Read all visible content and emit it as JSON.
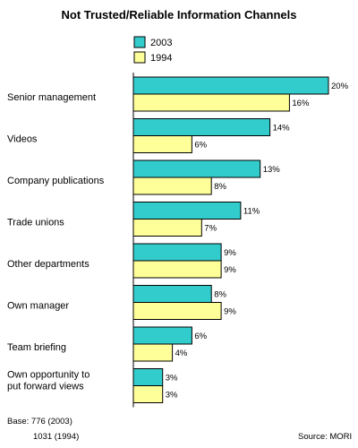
{
  "chart_data": {
    "type": "bar",
    "orientation": "horizontal",
    "title": "Not Trusted/Reliable Information Channels",
    "categories": [
      [
        "Senior management"
      ],
      [
        "Videos"
      ],
      [
        "Company publications"
      ],
      [
        "Trade unions"
      ],
      [
        "Other departments"
      ],
      [
        "Own manager"
      ],
      [
        "Team briefing"
      ],
      [
        "Own opportunity to",
        "put forward views"
      ]
    ],
    "series": [
      {
        "name": "2003",
        "color": "#33cccc",
        "values": [
          20,
          14,
          13,
          11,
          9,
          8,
          6,
          3
        ]
      },
      {
        "name": "1994",
        "color": "#ffff99",
        "values": [
          16,
          6,
          8,
          7,
          9,
          9,
          4,
          3
        ]
      }
    ],
    "value_suffix": "%",
    "xlim": [
      0,
      20
    ],
    "grid": false,
    "legend_position": "top"
  },
  "notes": {
    "base_line1": "Base: 776   (2003)",
    "base_line2": "1031 (1994)",
    "source": "Source: MORI"
  }
}
